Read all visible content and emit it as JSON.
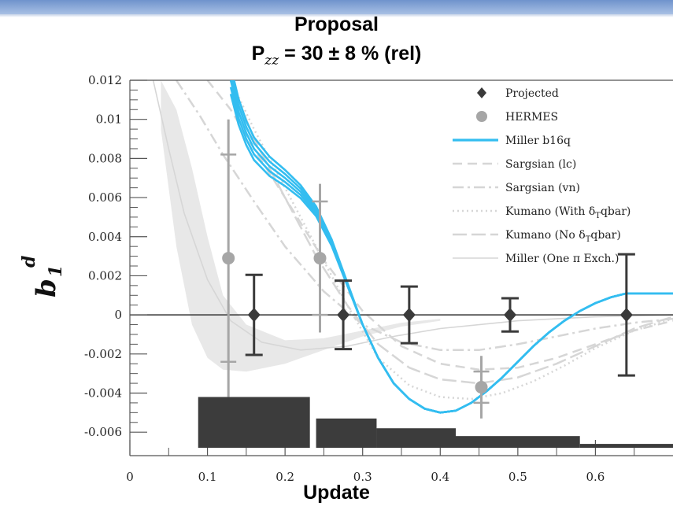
{
  "header": {
    "title_line1": "Proposal",
    "title_line2_prefix": "P",
    "title_line2_sub": "zz",
    "title_line2_suffix": " = 30 ± 8 % (rel)"
  },
  "footer": {
    "label": "Update"
  },
  "colors": {
    "banner": "#7b9ed2",
    "miller_b16q": "#33bdf0",
    "projected": "#3a3a3a",
    "hermes": "#a6a6a6",
    "theory_gray": "#d6d6d6",
    "error_bands": "#3c3c3c"
  },
  "chart_data": {
    "type": "scatter",
    "xlim": [
      0,
      0.7
    ],
    "ylim": [
      -0.0072,
      0.012
    ],
    "x_ticks": [
      0,
      0.1,
      0.2,
      0.3,
      0.4,
      0.5,
      0.6
    ],
    "x_tick_labels": [
      "0",
      "0.1",
      "0.2",
      "0.3",
      "0.4",
      "0.5",
      "0.6"
    ],
    "y_ticks": [
      -0.006,
      -0.004,
      -0.002,
      0,
      0.002,
      0.004,
      0.006,
      0.008,
      0.01,
      0.012
    ],
    "y_tick_labels": [
      "-0.006",
      "-0.004",
      "-0.002",
      "0",
      "0.002",
      "0.004",
      "0.006",
      "0.008",
      "0.01",
      "0.012"
    ],
    "ylabel_main": "b",
    "ylabel_sub": "1",
    "ylabel_sup": "d",
    "zero_line": true,
    "legend_position": "top-right",
    "legend": [
      {
        "label": "Projected",
        "style": "diamond"
      },
      {
        "label": "HERMES",
        "style": "circle"
      },
      {
        "label": "Miller b16q",
        "style": "blue-line"
      },
      {
        "label": "Sargsian (lc)",
        "style": "dash"
      },
      {
        "label": "Sargsian (vn)",
        "style": "dashdot"
      },
      {
        "label": "Kumano (With δ",
        "label_sub": "T",
        "label_suffix": "qbar)",
        "style": "dot"
      },
      {
        "label": "Kumano (No δ",
        "label_sub": "T",
        "label_suffix": "qbar)",
        "style": "longdash"
      },
      {
        "label": "Miller (One π Exch.)",
        "style": "thin"
      }
    ],
    "series": [
      {
        "name": "Projected",
        "points": [
          {
            "x": 0.16,
            "y": 0,
            "err": 0.00205
          },
          {
            "x": 0.275,
            "y": 0,
            "err": 0.00175
          },
          {
            "x": 0.36,
            "y": 0,
            "err": 0.00145
          },
          {
            "x": 0.49,
            "y": 0,
            "err": 0.00085
          },
          {
            "x": 0.64,
            "y": 0,
            "err": 0.0031
          }
        ]
      },
      {
        "name": "HERMES",
        "points": [
          {
            "x": 0.127,
            "y": 0.0029,
            "stat_err": 0.0071,
            "sys_err": 0.0053
          },
          {
            "x": 0.245,
            "y": 0.0029,
            "stat_err": 0.0038,
            "sys_err": 0.0029
          },
          {
            "x": 0.453,
            "y": -0.0037,
            "stat_err": 0.0016,
            "sys_err": 0.0008
          }
        ]
      },
      {
        "name": "Miller b16q",
        "x": [
          0.13,
          0.135,
          0.14,
          0.15,
          0.16,
          0.18,
          0.2,
          0.22,
          0.24,
          0.26,
          0.28,
          0.3,
          0.32,
          0.34,
          0.36,
          0.38,
          0.4,
          0.42,
          0.44,
          0.46,
          0.48,
          0.5,
          0.52,
          0.54,
          0.56,
          0.58,
          0.6,
          0.62,
          0.64,
          0.66,
          0.68,
          0.7
        ],
        "y": [
          0.012,
          0.0112,
          0.0104,
          0.0093,
          0.0085,
          0.0076,
          0.007,
          0.0063,
          0.0053,
          0.0037,
          0.0016,
          -0.0005,
          -0.0022,
          -0.0035,
          -0.0043,
          -0.0048,
          -0.005,
          -0.0049,
          -0.0045,
          -0.0039,
          -0.0032,
          -0.0024,
          -0.0016,
          -0.0009,
          -0.0003,
          0.0002,
          0.0006,
          0.0009,
          0.0011,
          0.0011,
          0.0011,
          0.0011
        ]
      },
      {
        "name": "Sargsian (lc)",
        "x": [
          0.1,
          0.13,
          0.16,
          0.2,
          0.25,
          0.3,
          0.35,
          0.4,
          0.45,
          0.5,
          0.55,
          0.6,
          0.65,
          0.7
        ],
        "y": [
          0.012,
          0.0105,
          0.0085,
          0.006,
          0.0028,
          0.0002,
          -0.0016,
          -0.0025,
          -0.0028,
          -0.0027,
          -0.0022,
          -0.0015,
          -0.0008,
          -0.0003
        ]
      },
      {
        "name": "Sargsian (vn)",
        "x": [
          0.06,
          0.09,
          0.12,
          0.16,
          0.2,
          0.25,
          0.3,
          0.35,
          0.4,
          0.45,
          0.5,
          0.55,
          0.6,
          0.65,
          0.7
        ],
        "y": [
          0.012,
          0.0102,
          0.0082,
          0.0058,
          0.0035,
          0.0012,
          -0.0005,
          -0.0014,
          -0.0018,
          -0.0018,
          -0.0015,
          -0.0011,
          -0.0007,
          -0.0004,
          -0.0002
        ]
      },
      {
        "name": "Kumano (With δTqbar)",
        "x": [
          0.13,
          0.16,
          0.2,
          0.24,
          0.28,
          0.32,
          0.36,
          0.4,
          0.44,
          0.48,
          0.52,
          0.56,
          0.6,
          0.65,
          0.7
        ],
        "y": [
          0.012,
          0.0095,
          0.0065,
          0.0035,
          0.0005,
          -0.0022,
          -0.0036,
          -0.0042,
          -0.0043,
          -0.004,
          -0.0034,
          -0.0026,
          -0.0017,
          -0.0008,
          -0.0002
        ]
      },
      {
        "name": "Kumano (No δTqbar)",
        "x": [
          0.13,
          0.16,
          0.2,
          0.24,
          0.28,
          0.32,
          0.36,
          0.4,
          0.45,
          0.5,
          0.55,
          0.6,
          0.65,
          0.7
        ],
        "y": [
          0.012,
          0.009,
          0.006,
          0.003,
          0.0005,
          -0.0015,
          -0.0027,
          -0.0033,
          -0.0035,
          -0.0032,
          -0.0025,
          -0.0016,
          -0.0007,
          -0.0001
        ]
      },
      {
        "name": "Miller (One π Exch.)",
        "x": [
          0.03,
          0.05,
          0.07,
          0.1,
          0.13,
          0.17,
          0.22,
          0.28,
          0.34,
          0.4,
          0.5,
          0.6,
          0.7
        ],
        "y": [
          0.012,
          0.0085,
          0.0052,
          0.0018,
          -0.0003,
          -0.0014,
          -0.0018,
          -0.0016,
          -0.0011,
          -0.0007,
          -0.0003,
          -0.0001,
          0
        ]
      },
      {
        "name": "Miller (One π Exch.) band",
        "x": [
          0.04,
          0.06,
          0.08,
          0.1,
          0.12,
          0.15,
          0.2,
          0.25,
          0.3,
          0.35,
          0.4
        ],
        "y_low": [
          0.0095,
          0.0035,
          -0.0005,
          -0.0022,
          -0.0028,
          -0.0029,
          -0.0025,
          -0.0018,
          -0.0011,
          -0.0006,
          -0.0003
        ],
        "y_high": [
          0.012,
          0.0105,
          0.0075,
          0.004,
          0.001,
          -0.0005,
          -0.0013,
          -0.0012,
          -0.0008,
          -0.0004,
          -0.0002
        ]
      },
      {
        "name": "Systematic error bars",
        "bins": [
          {
            "x0": 0.088,
            "x1": 0.232,
            "top": -0.0042
          },
          {
            "x0": 0.24,
            "x1": 0.318,
            "top": -0.0053
          },
          {
            "x0": 0.318,
            "x1": 0.42,
            "top": -0.0058
          },
          {
            "x0": 0.42,
            "x1": 0.58,
            "top": -0.0062
          },
          {
            "x0": 0.58,
            "x1": 0.7,
            "top": -0.0066
          }
        ],
        "bottom": -0.0068
      }
    ]
  }
}
